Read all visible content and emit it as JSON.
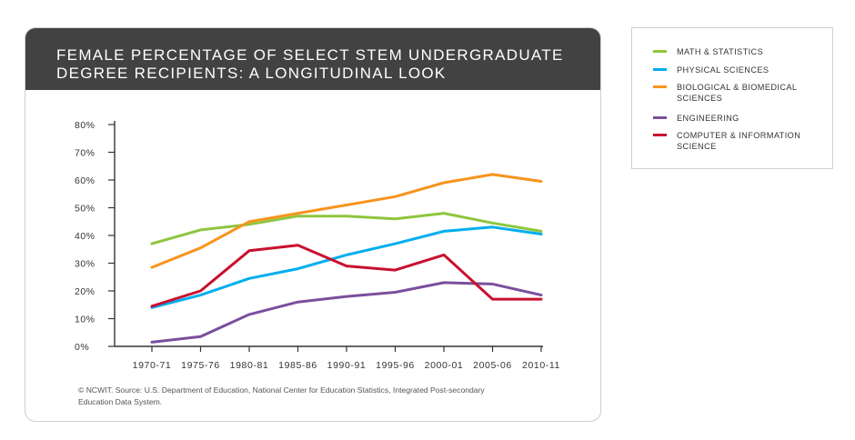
{
  "title": "FEMALE PERCENTAGE OF SELECT STEM UNDERGRADUATE DEGREE RECIPIENTS: A LONGITUDINAL LOOK",
  "source_note": "© NCWIT. Source: U.S. Department of Education, National Center for Education Statistics, Integrated Post-secondary Education Data System.",
  "chart_data": {
    "type": "line",
    "title": "FEMALE PERCENTAGE OF SELECT STEM UNDERGRADUATE DEGREE RECIPIENTS: A LONGITUDINAL LOOK",
    "xlabel": "",
    "ylabel": "",
    "categories": [
      "1970-71",
      "1975-76",
      "1980-81",
      "1985-86",
      "1990-91",
      "1995-96",
      "2000-01",
      "2005-06",
      "2010-11"
    ],
    "yticks": [
      "0%",
      "10%",
      "20%",
      "30%",
      "40%",
      "50%",
      "60%",
      "70%",
      "80%"
    ],
    "ylim": [
      0,
      80
    ],
    "grid": false,
    "legend_position": "right",
    "series": [
      {
        "name": "MATH & STATISTICS",
        "color": "#8dc63f",
        "values": [
          37,
          42,
          44,
          47,
          47,
          46,
          48,
          44.5,
          41.5
        ]
      },
      {
        "name": "PHYSICAL SCIENCES",
        "color": "#00aeef",
        "values": [
          14,
          18.5,
          24.5,
          28,
          33,
          37,
          41.5,
          43,
          40.5
        ]
      },
      {
        "name": "BIOLOGICAL & BIOMEDICAL SCIENCES",
        "color": "#f7941d",
        "values": [
          28.5,
          35.5,
          45,
          48,
          51,
          54,
          59,
          62,
          59.5
        ]
      },
      {
        "name": "ENGINEERING",
        "color": "#7b4f9d",
        "values": [
          1.5,
          3.5,
          11.5,
          16,
          18,
          19.5,
          23,
          22.5,
          18.5
        ]
      },
      {
        "name": "COMPUTER & INFORMATION SCIENCE",
        "color": "#c8102e",
        "values": [
          14.5,
          20,
          34.5,
          36.5,
          29,
          27.5,
          33,
          17,
          17
        ]
      }
    ]
  }
}
